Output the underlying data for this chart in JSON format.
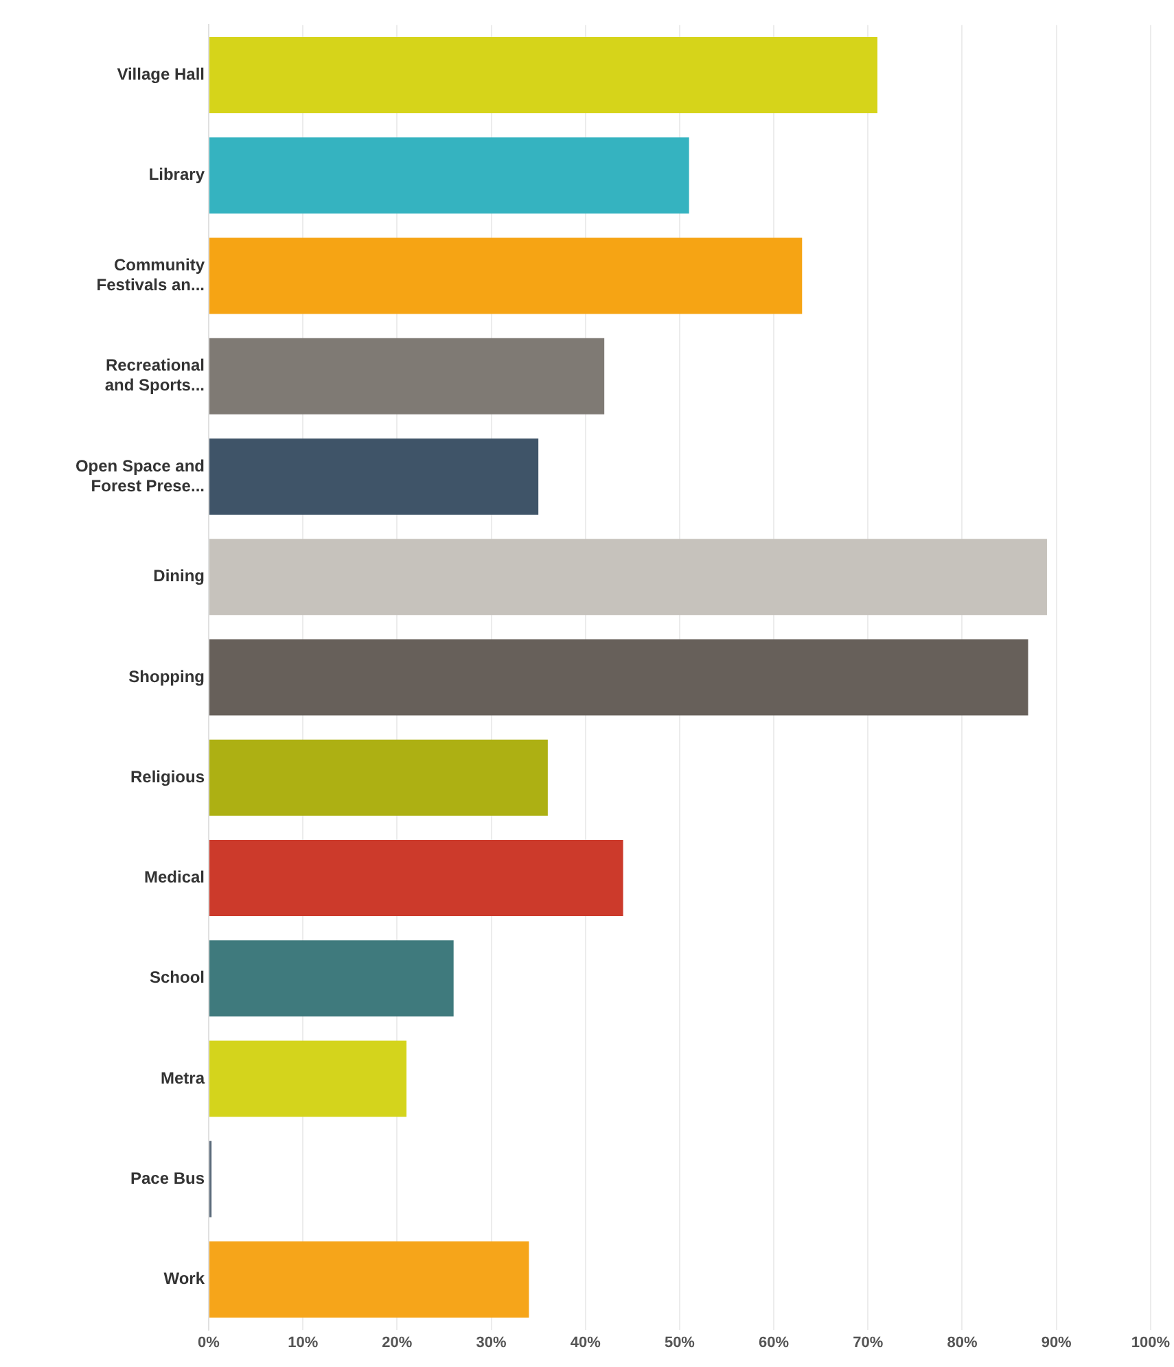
{
  "chart_data": {
    "type": "bar",
    "orientation": "horizontal",
    "categories": [
      "Village Hall",
      "Library",
      "Community Festivals an...",
      "Recreational and Sports...",
      "Open Space and Forest Prese...",
      "Dining",
      "Shopping",
      "Religious",
      "Medical",
      "School",
      "Metra",
      "Pace Bus",
      "Work"
    ],
    "values": [
      71,
      51,
      63,
      42,
      35,
      89,
      87,
      36,
      44,
      26,
      21,
      0.3,
      34
    ],
    "colors": [
      "#d6d41a",
      "#35b3c0",
      "#f6a414",
      "#7f7a74",
      "#3f5468",
      "#c6c2bc",
      "#67605a",
      "#adb013",
      "#cc3a2b",
      "#3f7a7d",
      "#d4d41c",
      "#5a6a7a",
      "#f6a51a"
    ],
    "xlim": [
      0,
      100
    ],
    "xticks": [
      {
        "value": 0,
        "label": "0%"
      },
      {
        "value": 10,
        "label": "10%"
      },
      {
        "value": 20,
        "label": "20%"
      },
      {
        "value": 30,
        "label": "30%"
      },
      {
        "value": 40,
        "label": "40%"
      },
      {
        "value": 50,
        "label": "50%"
      },
      {
        "value": 60,
        "label": "60%"
      },
      {
        "value": 70,
        "label": "70%"
      },
      {
        "value": 80,
        "label": "80%"
      },
      {
        "value": 90,
        "label": "90%"
      },
      {
        "value": 100,
        "label": "100%"
      }
    ],
    "grid": "x",
    "legend": false
  }
}
